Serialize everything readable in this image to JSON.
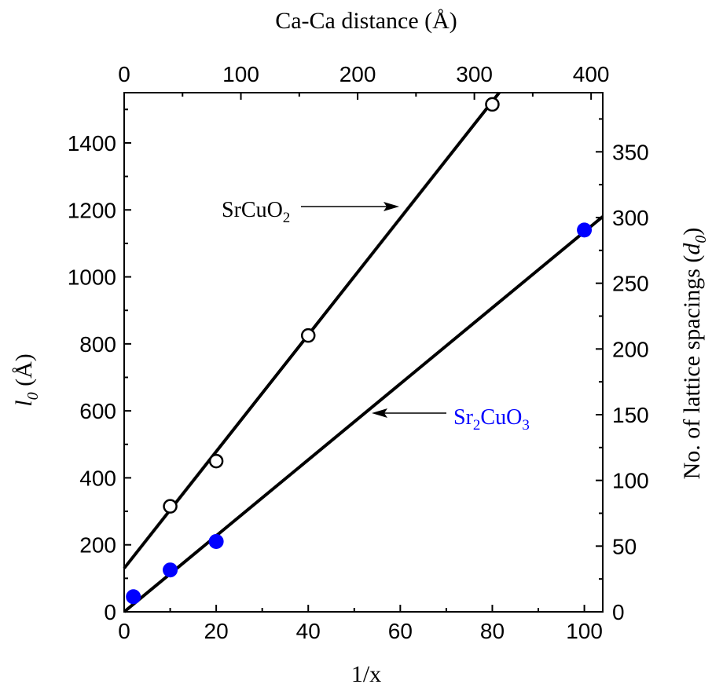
{
  "chart_data": {
    "type": "scatter",
    "xlabel": "1/x",
    "ylabel": "l0 (Å)",
    "ylabel_main": "l",
    "ylabel_sub": "0",
    "ylabel_unit": " (Å)",
    "top_xlabel": "Ca-Ca distance (Å)",
    "right_ylabel": "No. of lattice spacings (d0)",
    "right_ylabel_main": "No. of lattice spacings (",
    "right_ylabel_var": "d",
    "right_ylabel_sub": "0",
    "right_ylabel_close": ")",
    "xlim": [
      0,
      104
    ],
    "ylim": [
      0,
      1550
    ],
    "top_xlim": [
      0,
      410
    ],
    "right_ylim": [
      0,
      395
    ],
    "x_ticks": [
      0,
      20,
      40,
      60,
      80,
      100
    ],
    "y_ticks": [
      0,
      200,
      400,
      600,
      800,
      1000,
      1200,
      1400
    ],
    "top_x_ticks": [
      0,
      100,
      200,
      300,
      400
    ],
    "right_y_ticks": [
      0,
      50,
      100,
      150,
      200,
      250,
      300,
      350
    ],
    "grid": false,
    "series": [
      {
        "name": "SrCuO2",
        "marker": "open-circle",
        "color": "#000000",
        "x": [
          10,
          20,
          40,
          80
        ],
        "y": [
          315,
          450,
          825,
          1515
        ],
        "fit": {
          "x": [
            0,
            81.5
          ],
          "y": [
            130,
            1550
          ]
        }
      },
      {
        "name": "Sr2CuO3",
        "marker": "filled-circle",
        "color": "#0000ff",
        "x": [
          2,
          10,
          20,
          100
        ],
        "y": [
          45,
          125,
          210,
          1140
        ],
        "fit": {
          "x": [
            0,
            104
          ],
          "y": [
            0,
            1180
          ]
        }
      }
    ],
    "annotations": [
      {
        "label_main": "SrCuO",
        "label_sub": "2",
        "color": "#000000",
        "points_to_series": "SrCuO2"
      },
      {
        "label_main": "Sr",
        "label_sub1": "2",
        "label_mid": "CuO",
        "label_sub2": "3",
        "color": "#0000ff",
        "points_to_series": "Sr2CuO3"
      }
    ]
  }
}
